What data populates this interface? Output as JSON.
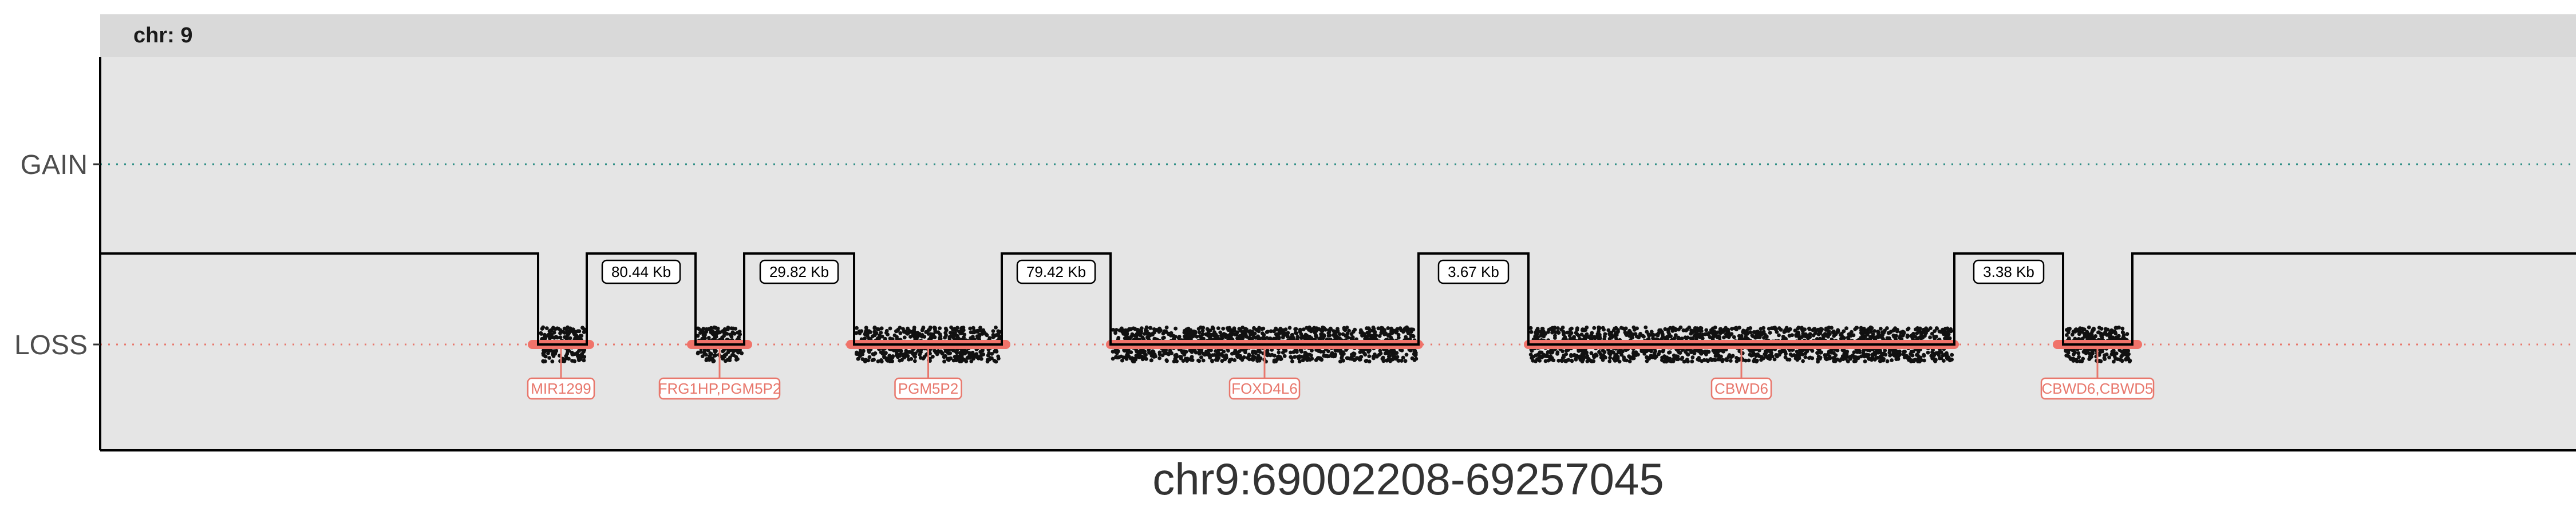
{
  "chart_data": {
    "type": "copy-number-segment-plot",
    "facet_label": "chr: 9",
    "xlabel": "chr9:69002208-69257045",
    "y_categories": [
      "GAIN",
      "LOSS"
    ],
    "colors": {
      "gain_line": "#2f8f86",
      "loss_line": "#e8776c",
      "segment_line": "#000000",
      "points": "#111111",
      "gene_bar": "#f0736a",
      "gene_label": "#e8776c"
    },
    "regions": [
      {
        "name": "region-1",
        "status": "LOSS",
        "gene": "MIR1299"
      },
      {
        "name": "region-2",
        "status": "LOSS",
        "gene": "FRG1HP,PGM5P2"
      },
      {
        "name": "region-3",
        "status": "LOSS",
        "gene": "PGM5P2"
      },
      {
        "name": "region-4",
        "status": "LOSS",
        "gene": "FOXD4L6"
      },
      {
        "name": "region-5",
        "status": "LOSS",
        "gene": "CBWD6"
      },
      {
        "name": "region-6",
        "status": "LOSS",
        "gene": "CBWD6,CBWD5"
      }
    ],
    "gaps": [
      "80.44 Kb",
      "29.82 Kb",
      "79.42 Kb",
      "3.67 Kb",
      "3.38 Kb"
    ]
  }
}
